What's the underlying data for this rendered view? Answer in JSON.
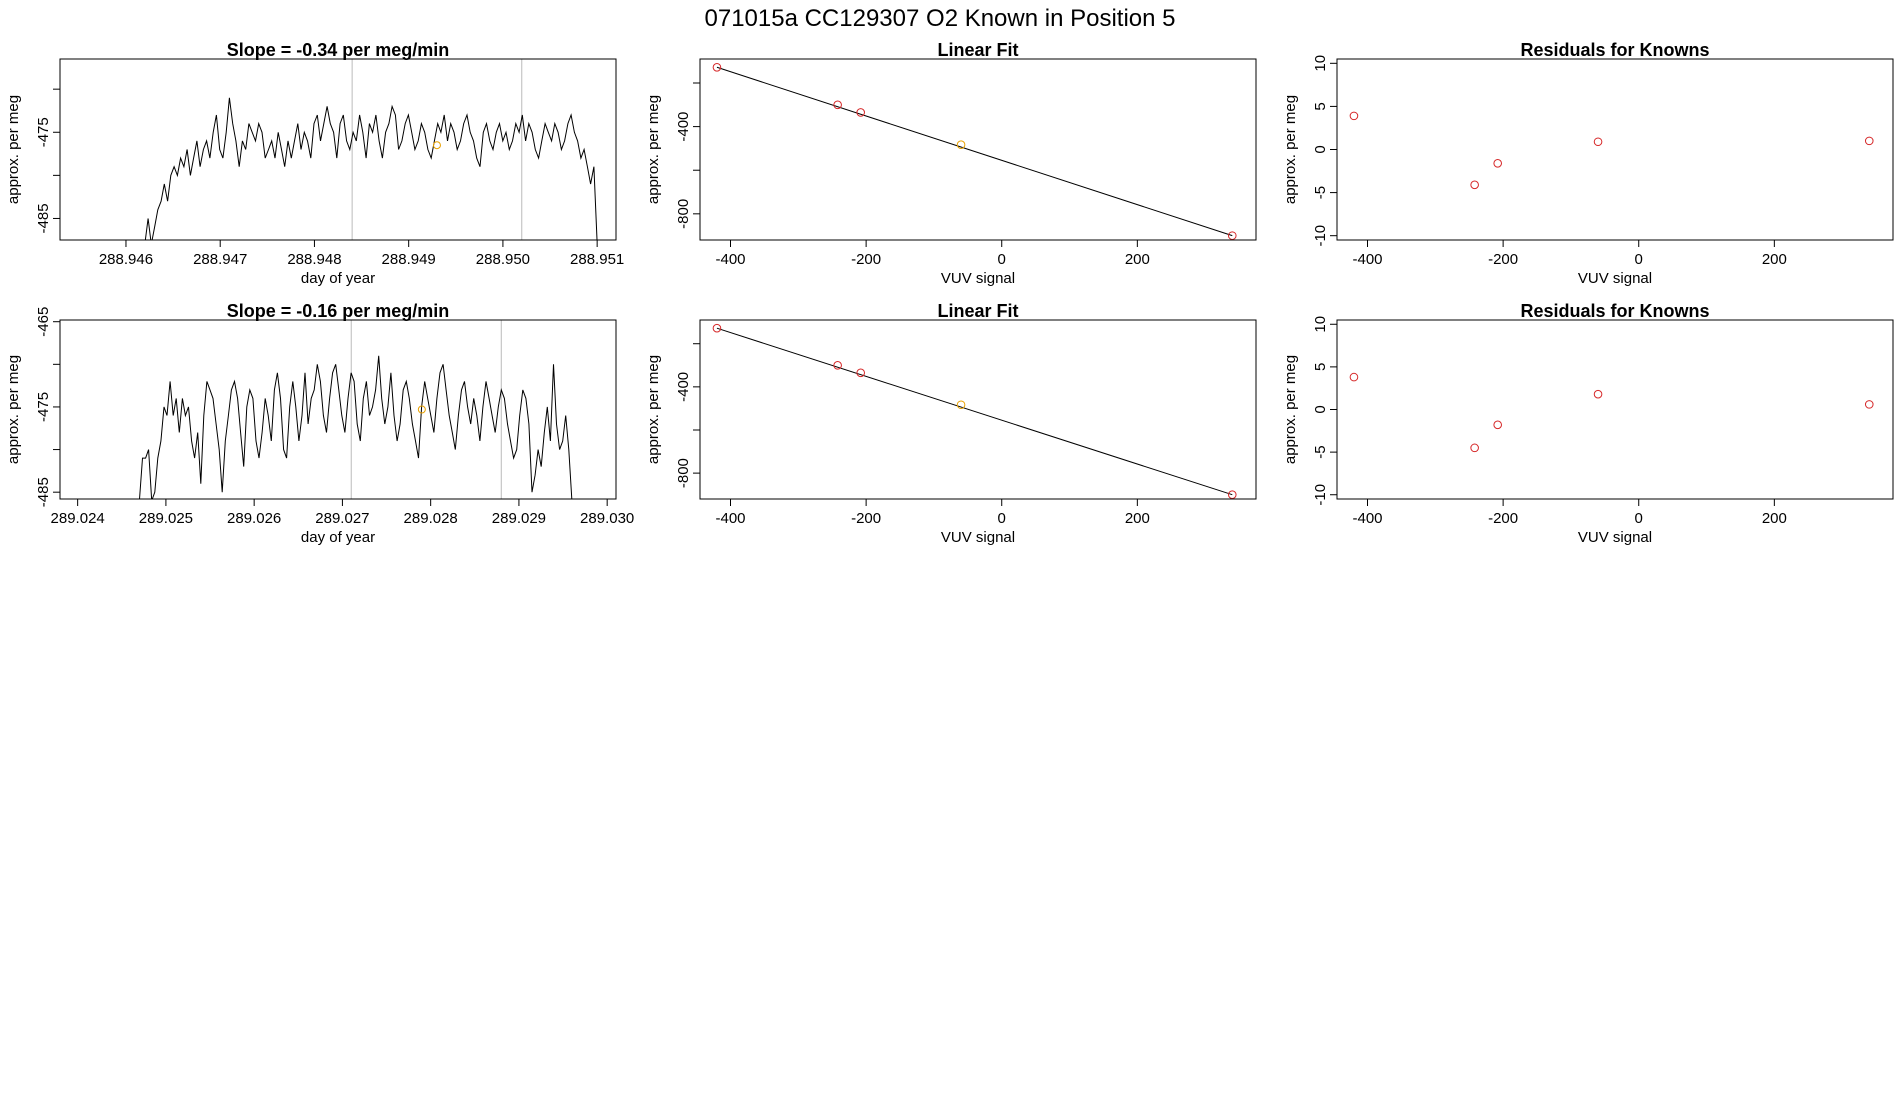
{
  "figure_title": "071015a      CC129307   O2 Known in Position  5",
  "colors": {
    "known": "#d62728",
    "unknown": "#e8a000",
    "line": "#000000",
    "vline": "#bbbbbb"
  },
  "chart_data": [
    {
      "id": "ts1",
      "type": "line",
      "title": "Slope =  -0.34  per meg/min",
      "xlabel": "day of year",
      "ylabel": "approx. per meg",
      "xlim": [
        288.9453,
        288.9512
      ],
      "ylim": [
        -487.5,
        -466.5
      ],
      "xticks": [
        288.946,
        288.947,
        288.948,
        288.949,
        288.95,
        288.951
      ],
      "xtick_labels": [
        "288.946",
        "288.947",
        "288.948",
        "288.949",
        "288.950",
        "288.951"
      ],
      "yticks": [
        -485,
        -480,
        -475,
        -470
      ],
      "ytick_labels": [
        "-485",
        "",
        "-475",
        ""
      ],
      "vlines": [
        288.9484,
        288.9502
      ],
      "x_start": 288.9462,
      "x_end": 288.951,
      "y": [
        -488,
        -485,
        -488,
        -486,
        -484,
        -483,
        -481,
        -483,
        -480,
        -479,
        -480,
        -478,
        -479,
        -477,
        -480,
        -478,
        -476,
        -479,
        -477,
        -476,
        -478,
        -475,
        -473,
        -477,
        -478,
        -475,
        -471,
        -474,
        -476,
        -479,
        -476,
        -477,
        -474,
        -475,
        -476,
        -474,
        -475,
        -478,
        -477,
        -476,
        -478,
        -475,
        -477,
        -479,
        -476,
        -478,
        -476,
        -474,
        -477,
        -475,
        -476,
        -478,
        -474,
        -473,
        -476,
        -474,
        -472,
        -474,
        -475,
        -478,
        -474,
        -473,
        -476,
        -477,
        -475,
        -476,
        -473,
        -475,
        -478,
        -474,
        -475,
        -473,
        -476,
        -478,
        -475,
        -474,
        -472,
        -473,
        -477,
        -476,
        -474,
        -473,
        -475,
        -477,
        -476,
        -474,
        -475,
        -477,
        -478,
        -476,
        -474,
        -475,
        -473,
        -476,
        -474,
        -475,
        -477,
        -476,
        -474,
        -473,
        -475,
        -476,
        -478,
        -479,
        -475,
        -474,
        -476,
        -477,
        -475,
        -474,
        -476,
        -475,
        -477,
        -476,
        -474,
        -475,
        -473,
        -476,
        -474,
        -475,
        -477,
        -478,
        -476,
        -474,
        -475,
        -476,
        -474,
        -475,
        -477,
        -476,
        -474,
        -473,
        -475,
        -476,
        -478,
        -477,
        -479,
        -481,
        -479,
        -488
      ],
      "marker": {
        "x": 288.9493,
        "y": -476.5
      }
    },
    {
      "id": "fit1",
      "type": "scatter",
      "title": "Linear Fit",
      "xlabel": "VUV signal",
      "ylabel": "approx. per meg",
      "xlim": [
        -445,
        375
      ],
      "ylim": [
        -920,
        -90
      ],
      "xticks": [
        -400,
        -200,
        0,
        200
      ],
      "xtick_labels": [
        "-400",
        "-200",
        "0",
        "200"
      ],
      "yticks": [
        -800,
        -600,
        -400,
        -200
      ],
      "ytick_labels": [
        "-800",
        "",
        "-400",
        ""
      ],
      "fit_line": [
        [
          -420,
          -128
        ],
        [
          340,
          -900
        ]
      ],
      "points": [
        {
          "x": -420,
          "y": -128,
          "role": "known"
        },
        {
          "x": -242,
          "y": -300,
          "role": "known"
        },
        {
          "x": -208,
          "y": -335,
          "role": "known"
        },
        {
          "x": -60,
          "y": -483,
          "role": "unknown"
        },
        {
          "x": 340,
          "y": -900,
          "role": "known"
        }
      ]
    },
    {
      "id": "res1",
      "type": "scatter",
      "title": "Residuals for Knowns",
      "xlabel": "VUV signal",
      "ylabel": "approx. per meg",
      "xlim": [
        -445,
        375
      ],
      "ylim": [
        -10.5,
        10.5
      ],
      "xticks": [
        -400,
        -200,
        0,
        200
      ],
      "xtick_labels": [
        "-400",
        "-200",
        "0",
        "200"
      ],
      "yticks": [
        -10,
        -5,
        0,
        5,
        10
      ],
      "ytick_labels": [
        "-10",
        "-5",
        "0",
        "5",
        "10"
      ],
      "points": [
        {
          "x": -420,
          "y": 3.9,
          "role": "known"
        },
        {
          "x": -242,
          "y": -4.1,
          "role": "known"
        },
        {
          "x": -208,
          "y": -1.6,
          "role": "known"
        },
        {
          "x": -60,
          "y": 0.9,
          "role": "known"
        },
        {
          "x": 340,
          "y": 1.0,
          "role": "known"
        }
      ]
    },
    {
      "id": "ts2",
      "type": "line",
      "title": "Slope =  -0.16  per meg/min",
      "xlabel": "day of year",
      "ylabel": "approx. per meg",
      "xlim": [
        289.0238,
        289.0301
      ],
      "ylim": [
        -485.8,
        -464.8
      ],
      "xticks": [
        289.024,
        289.025,
        289.026,
        289.027,
        289.028,
        289.029,
        289.03
      ],
      "xtick_labels": [
        "289.024",
        "289.025",
        "289.026",
        "289.027",
        "289.028",
        "289.029",
        "289.030"
      ],
      "yticks": [
        -485,
        -480,
        -475,
        -470,
        -465
      ],
      "ytick_labels": [
        "-485",
        "",
        "-475",
        "",
        "-465"
      ],
      "vlines": [
        289.0271,
        289.0288
      ],
      "x_start": 289.0247,
      "x_end": 289.0296,
      "y": [
        -486,
        -481,
        -481,
        -480,
        -486,
        -485,
        -481,
        -479,
        -475,
        -476,
        -472,
        -476,
        -474,
        -478,
        -474,
        -476,
        -475,
        -479,
        -481,
        -478,
        -484,
        -476,
        -472,
        -473,
        -474,
        -477,
        -480,
        -485,
        -479,
        -476,
        -473,
        -472,
        -474,
        -478,
        -482,
        -475,
        -473,
        -474,
        -479,
        -481,
        -478,
        -474,
        -476,
        -479,
        -473,
        -471,
        -474,
        -480,
        -481,
        -475,
        -472,
        -475,
        -479,
        -476,
        -471,
        -477,
        -474,
        -473,
        -470,
        -472,
        -476,
        -478,
        -474,
        -471,
        -470,
        -473,
        -476,
        -478,
        -474,
        -471,
        -472,
        -477,
        -479,
        -474,
        -472,
        -476,
        -475,
        -473,
        -469,
        -474,
        -477,
        -475,
        -471,
        -476,
        -479,
        -477,
        -473,
        -472,
        -474,
        -477,
        -479,
        -481,
        -475,
        -472,
        -474,
        -476,
        -478,
        -474,
        -471,
        -470,
        -473,
        -476,
        -478,
        -480,
        -476,
        -473,
        -472,
        -475,
        -477,
        -474,
        -476,
        -479,
        -475,
        -472,
        -474,
        -476,
        -478,
        -475,
        -473,
        -474,
        -477,
        -479,
        -481,
        -480,
        -476,
        -473,
        -474,
        -477,
        -485,
        -483,
        -480,
        -482,
        -478,
        -475,
        -479,
        -470,
        -477,
        -480,
        -479,
        -476,
        -480,
        -486
      ],
      "marker": {
        "x": 289.0279,
        "y": -475.3
      }
    },
    {
      "id": "fit2",
      "type": "scatter",
      "title": "Linear Fit",
      "xlabel": "VUV signal",
      "ylabel": "approx. per meg",
      "xlim": [
        -445,
        375
      ],
      "ylim": [
        -920,
        -90
      ],
      "xticks": [
        -400,
        -200,
        0,
        200
      ],
      "xtick_labels": [
        "-400",
        "-200",
        "0",
        "200"
      ],
      "yticks": [
        -800,
        -600,
        -400,
        -200
      ],
      "ytick_labels": [
        "-800",
        "",
        "-400",
        ""
      ],
      "fit_line": [
        [
          -420,
          -128
        ],
        [
          340,
          -900
        ]
      ],
      "points": [
        {
          "x": -420,
          "y": -128,
          "role": "known"
        },
        {
          "x": -242,
          "y": -300,
          "role": "known"
        },
        {
          "x": -208,
          "y": -335,
          "role": "known"
        },
        {
          "x": -60,
          "y": -483,
          "role": "unknown"
        },
        {
          "x": 340,
          "y": -900,
          "role": "known"
        }
      ]
    },
    {
      "id": "res2",
      "type": "scatter",
      "title": "Residuals for Knowns",
      "xlabel": "VUV signal",
      "ylabel": "approx. per meg",
      "xlim": [
        -445,
        375
      ],
      "ylim": [
        -10.5,
        10.5
      ],
      "xticks": [
        -400,
        -200,
        0,
        200
      ],
      "xtick_labels": [
        "-400",
        "-200",
        "0",
        "200"
      ],
      "yticks": [
        -10,
        -5,
        0,
        5,
        10
      ],
      "ytick_labels": [
        "-10",
        "-5",
        "0",
        "5",
        "10"
      ],
      "points": [
        {
          "x": -420,
          "y": 3.8,
          "role": "known"
        },
        {
          "x": -242,
          "y": -4.5,
          "role": "known"
        },
        {
          "x": -208,
          "y": -1.8,
          "role": "known"
        },
        {
          "x": -60,
          "y": 1.8,
          "role": "known"
        },
        {
          "x": 340,
          "y": 0.6,
          "role": "known"
        }
      ]
    }
  ]
}
